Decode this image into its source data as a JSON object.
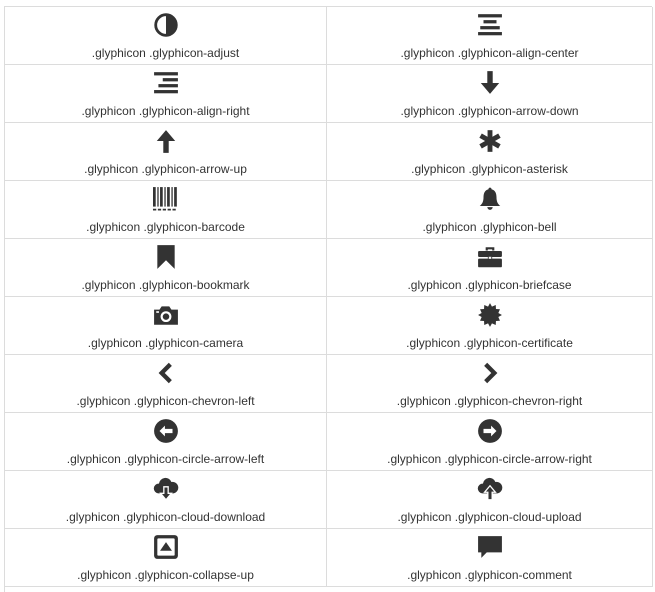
{
  "glyph_color": "#333333",
  "border_color": "#dcdcdc",
  "items": [
    {
      "icon": "adjust-icon",
      "label": ".glyphicon .glyphicon-adjust"
    },
    {
      "icon": "align-center-icon",
      "label": ".glyphicon .glyphicon-align-center"
    },
    {
      "icon": "align-right-icon",
      "label": ".glyphicon .glyphicon-align-right"
    },
    {
      "icon": "arrow-down-icon",
      "label": ".glyphicon .glyphicon-arrow-down"
    },
    {
      "icon": "arrow-up-icon",
      "label": ".glyphicon .glyphicon-arrow-up"
    },
    {
      "icon": "asterisk-icon",
      "label": ".glyphicon .glyphicon-asterisk"
    },
    {
      "icon": "barcode-icon",
      "label": ".glyphicon .glyphicon-barcode"
    },
    {
      "icon": "bell-icon",
      "label": ".glyphicon .glyphicon-bell"
    },
    {
      "icon": "bookmark-icon",
      "label": ".glyphicon .glyphicon-bookmark"
    },
    {
      "icon": "briefcase-icon",
      "label": ".glyphicon .glyphicon-briefcase"
    },
    {
      "icon": "camera-icon",
      "label": ".glyphicon .glyphicon-camera"
    },
    {
      "icon": "certificate-icon",
      "label": ".glyphicon .glyphicon-certificate"
    },
    {
      "icon": "chevron-left-icon",
      "label": ".glyphicon .glyphicon-chevron-left"
    },
    {
      "icon": "chevron-right-icon",
      "label": ".glyphicon .glyphicon-chevron-right"
    },
    {
      "icon": "circle-arrow-left-icon",
      "label": ".glyphicon .glyphicon-circle-arrow-left"
    },
    {
      "icon": "circle-arrow-right-icon",
      "label": ".glyphicon .glyphicon-circle-arrow-right"
    },
    {
      "icon": "cloud-download-icon",
      "label": ".glyphicon .glyphicon-cloud-download"
    },
    {
      "icon": "cloud-upload-icon",
      "label": ".glyphicon .glyphicon-cloud-upload"
    },
    {
      "icon": "collapse-up-icon",
      "label": ".glyphicon .glyphicon-collapse-up"
    },
    {
      "icon": "comment-icon",
      "label": ".glyphicon .glyphicon-comment"
    }
  ]
}
